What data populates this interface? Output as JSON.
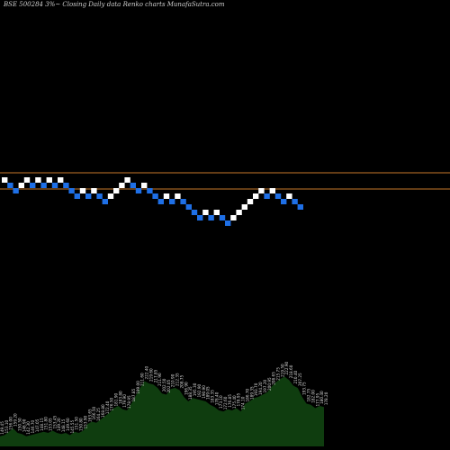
{
  "header": {
    "title": "BSE 500284  3%~  Closing Daily data  Renko  charts MunafaSutra.com"
  },
  "colors": {
    "background": "#000000",
    "up_brick": "#ffffff",
    "down_brick": "#1e6fe6",
    "level_line": "#c8782a",
    "volume_area": "#0f3d0f",
    "volume_label": "#d8d8d8"
  },
  "chart_data": {
    "type": "renko",
    "levels": [
      {
        "name": "upper-level"
      },
      {
        "name": "lower-level"
      }
    ],
    "bricks": [
      {
        "dir": "up",
        "level": 2
      },
      {
        "dir": "down",
        "level": 1
      },
      {
        "dir": "down",
        "level": 0
      },
      {
        "dir": "up",
        "level": 1
      },
      {
        "dir": "up",
        "level": 2
      },
      {
        "dir": "down",
        "level": 1
      },
      {
        "dir": "up",
        "level": 2
      },
      {
        "dir": "down",
        "level": 1
      },
      {
        "dir": "up",
        "level": 2
      },
      {
        "dir": "down",
        "level": 1
      },
      {
        "dir": "up",
        "level": 2
      },
      {
        "dir": "down",
        "level": 1
      },
      {
        "dir": "down",
        "level": 0
      },
      {
        "dir": "down",
        "level": -1
      },
      {
        "dir": "up",
        "level": 0
      },
      {
        "dir": "down",
        "level": -1
      },
      {
        "dir": "up",
        "level": 0
      },
      {
        "dir": "down",
        "level": -1
      },
      {
        "dir": "down",
        "level": -2
      },
      {
        "dir": "up",
        "level": -1
      },
      {
        "dir": "up",
        "level": 0
      },
      {
        "dir": "up",
        "level": 1
      },
      {
        "dir": "up",
        "level": 2
      },
      {
        "dir": "down",
        "level": 1
      },
      {
        "dir": "down",
        "level": 0
      },
      {
        "dir": "up",
        "level": 1
      },
      {
        "dir": "down",
        "level": 0
      },
      {
        "dir": "down",
        "level": -1
      },
      {
        "dir": "down",
        "level": -2
      },
      {
        "dir": "up",
        "level": -1
      },
      {
        "dir": "down",
        "level": -2
      },
      {
        "dir": "up",
        "level": -1
      },
      {
        "dir": "down",
        "level": -2
      },
      {
        "dir": "down",
        "level": -3
      },
      {
        "dir": "down",
        "level": -4
      },
      {
        "dir": "down",
        "level": -5
      },
      {
        "dir": "up",
        "level": -4
      },
      {
        "dir": "down",
        "level": -5
      },
      {
        "dir": "up",
        "level": -4
      },
      {
        "dir": "down",
        "level": -5
      },
      {
        "dir": "down",
        "level": -6
      },
      {
        "dir": "up",
        "level": -5
      },
      {
        "dir": "up",
        "level": -4
      },
      {
        "dir": "up",
        "level": -3
      },
      {
        "dir": "up",
        "level": -2
      },
      {
        "dir": "up",
        "level": -1
      },
      {
        "dir": "up",
        "level": 0
      },
      {
        "dir": "down",
        "level": -1
      },
      {
        "dir": "up",
        "level": 0
      },
      {
        "dir": "down",
        "level": -1
      },
      {
        "dir": "down",
        "level": -2
      },
      {
        "dir": "up",
        "level": -1
      },
      {
        "dir": "down",
        "level": -2
      },
      {
        "dir": "down",
        "level": -3
      }
    ],
    "volume_labels": [
      "149.45",
      "153.10",
      "156.00",
      "159.20",
      "150.50",
      "148.90",
      "142.30",
      "146.70",
      "147.05",
      "148.15",
      "151.80",
      "153.05",
      "153.45",
      "149.20",
      "148.15",
      "149.60",
      "145.55",
      "151.50",
      "150.80",
      "153.90",
      "163.65",
      "166.50",
      "164.25",
      "168.80",
      "172.40",
      "176.50",
      "181.90",
      "183.80",
      "179.90",
      "178.95",
      "187.85",
      "199.00",
      "211.60",
      "222.40",
      "219.60",
      "217.85",
      "211.90",
      "202.50",
      "202.05",
      "210.90",
      "212.35",
      "208.75",
      "196.90",
      "188.35",
      "195.30",
      "192.90",
      "190.90",
      "189.05",
      "183.35",
      "178.40",
      "173.10",
      "172.60",
      "176.85",
      "175.40",
      "178.95",
      "174.10",
      "186.70",
      "189.35",
      "193.70",
      "194.20",
      "197.20",
      "200.95",
      "208.65",
      "215.75",
      "219.50",
      "222.90",
      "218.60",
      "210.40",
      "207.25",
      "193.75",
      "182.75",
      "182.00",
      "177.95",
      "180.40",
      "178.20"
    ],
    "volume": [
      9,
      10,
      13,
      16,
      12,
      11,
      9,
      10,
      11,
      12,
      13,
      12,
      14,
      12,
      11,
      12,
      10,
      13,
      12,
      14,
      20,
      22,
      21,
      24,
      27,
      30,
      34,
      36,
      33,
      32,
      38,
      45,
      52,
      58,
      56,
      55,
      52,
      47,
      46,
      51,
      52,
      50,
      44,
      40,
      43,
      42,
      41,
      40,
      37,
      35,
      32,
      31,
      33,
      32,
      34,
      31,
      38,
      40,
      43,
      44,
      46,
      48,
      53,
      57,
      60,
      62,
      59,
      54,
      52,
      44,
      38,
      37,
      34,
      36,
      35
    ]
  }
}
